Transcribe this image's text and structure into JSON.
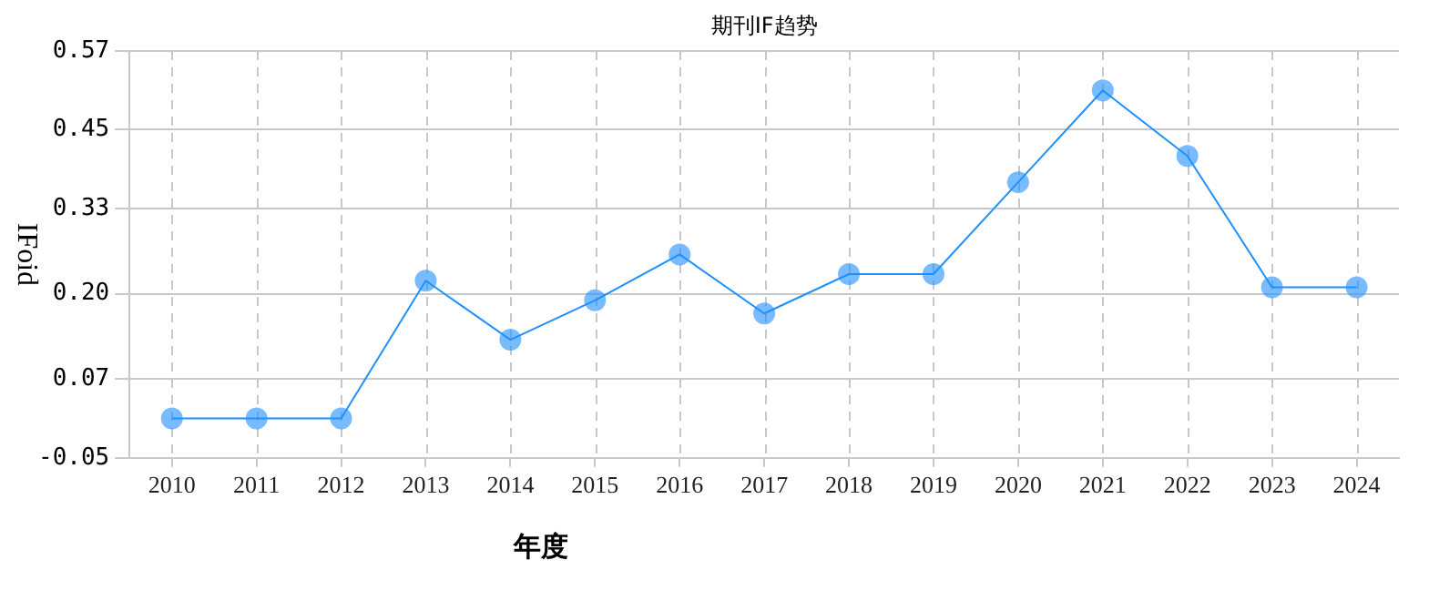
{
  "chart_data": {
    "type": "line",
    "title": "期刊IF趋势",
    "xlabel": "年度",
    "ylabel": "IFoid",
    "categories": [
      "2010",
      "2011",
      "2012",
      "2013",
      "2014",
      "2015",
      "2016",
      "2017",
      "2018",
      "2019",
      "2020",
      "2021",
      "2022",
      "2023",
      "2024"
    ],
    "series": [
      {
        "color": "#1e90ff",
        "values": [
          0.01,
          0.01,
          0.01,
          0.22,
          0.13,
          0.19,
          0.26,
          0.17,
          0.23,
          0.23,
          0.37,
          0.51,
          0.41,
          0.21,
          0.21
        ]
      }
    ],
    "ylim": [
      -0.05,
      0.57
    ],
    "yticks": [
      {
        "value": -0.05,
        "label": "-0.05"
      },
      {
        "value": 0.07,
        "label": "0.07"
      },
      {
        "value": 0.2,
        "label": "0.20"
      },
      {
        "value": 0.33,
        "label": "0.33"
      },
      {
        "value": 0.45,
        "label": "0.45"
      },
      {
        "value": 0.57,
        "label": "0.57"
      }
    ],
    "grid": true,
    "marker": "circle",
    "line_style": "solid",
    "legend": false
  }
}
